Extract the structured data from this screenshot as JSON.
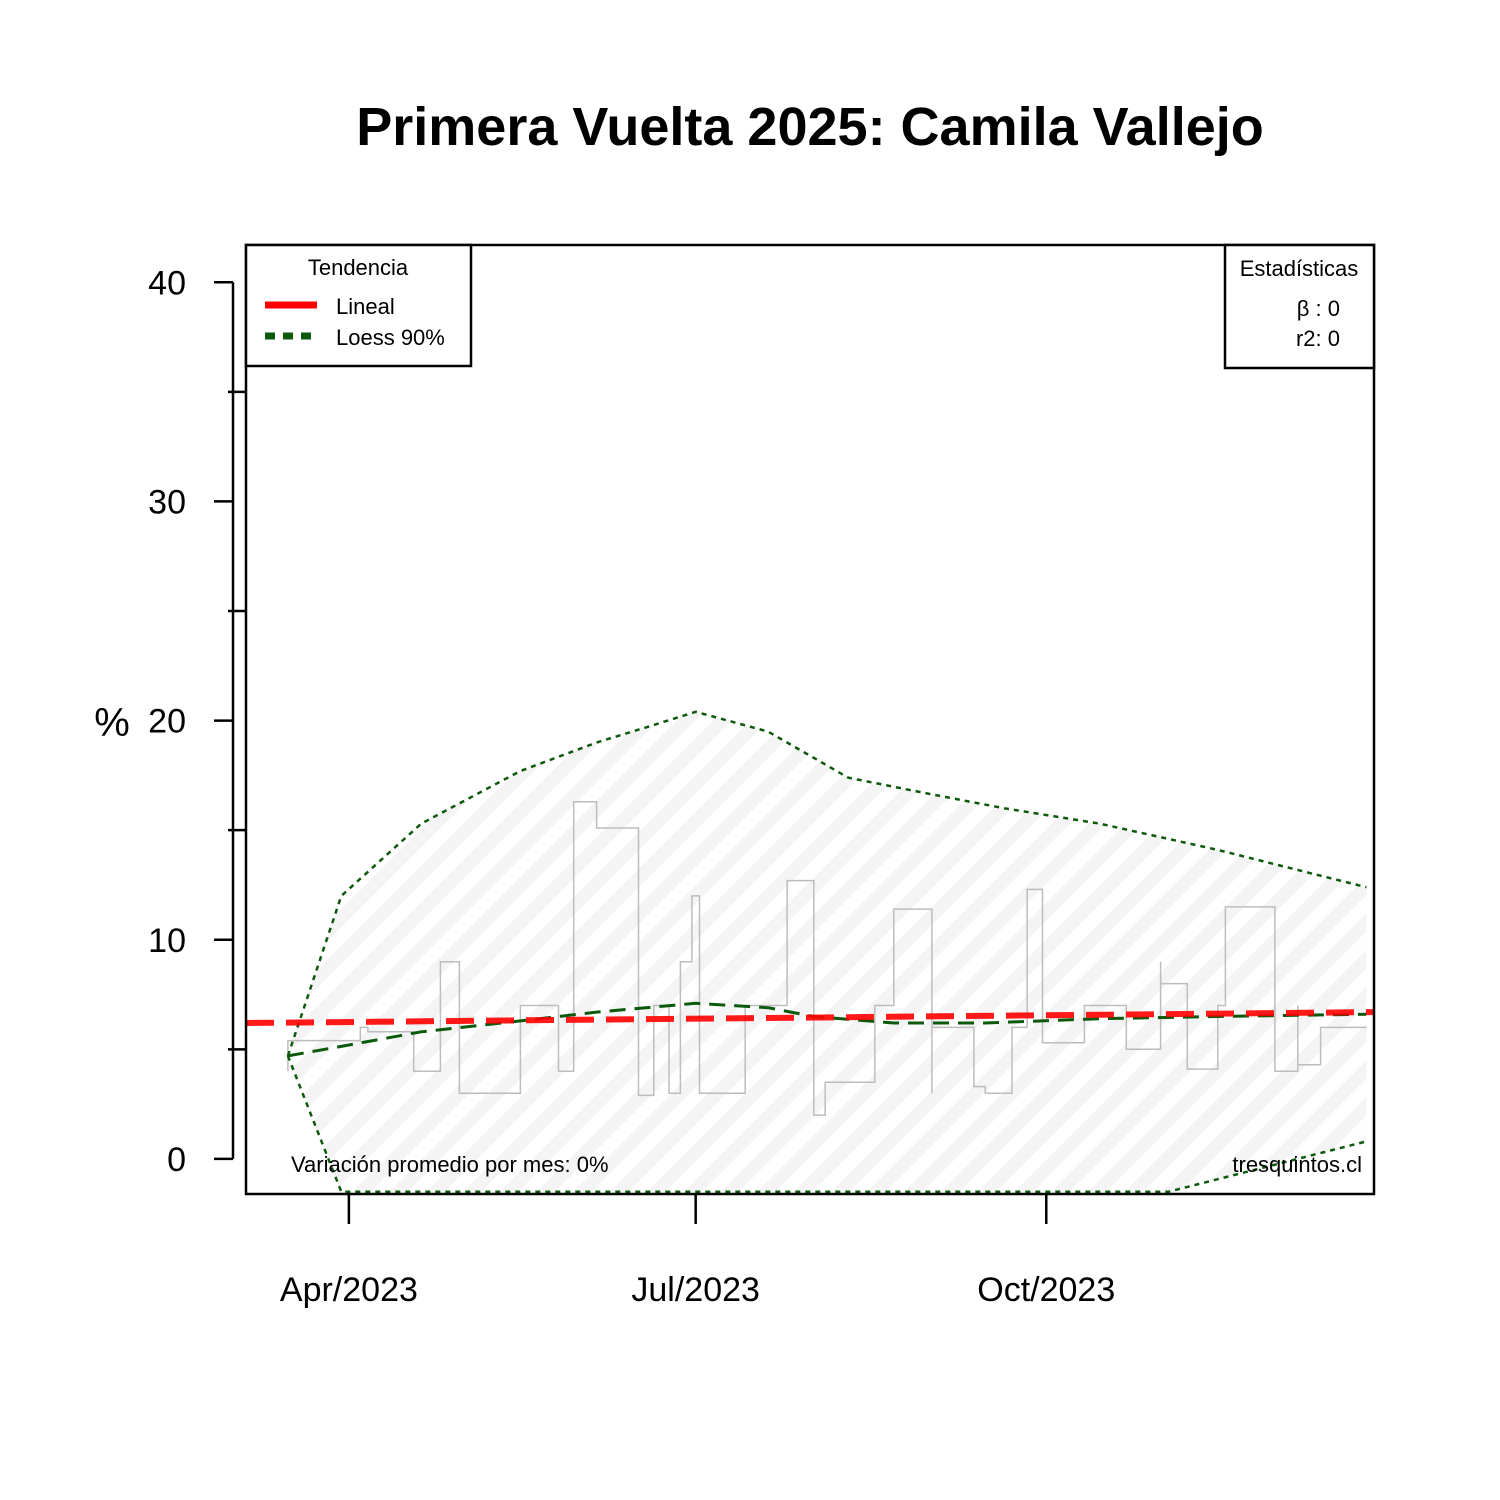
{
  "chart_data": {
    "type": "line",
    "title": "Primera Vuelta 2025: Camila Vallejo",
    "ylabel": "%",
    "xlabel": "",
    "ylim": [
      -1.6,
      41.7
    ],
    "xlim": [
      "2023-03-05",
      "2023-12-26"
    ],
    "yticks": [
      0,
      10,
      20,
      30,
      40
    ],
    "yticks_minor": [
      5,
      15,
      25,
      35
    ],
    "xticks": [
      {
        "date": "2023-04-01",
        "label": "Apr/2023"
      },
      {
        "date": "2023-07-01",
        "label": "Jul/2023"
      },
      {
        "date": "2023-10-01",
        "label": "Oct/2023"
      }
    ],
    "grid": false,
    "series": [
      {
        "name": "",
        "style": "step",
        "color": "#bdbdbd",
        "points": [
          [
            "2023-03-16",
            4.0
          ],
          [
            "2023-03-16",
            5.4
          ],
          [
            "2023-03-30",
            5.4
          ],
          [
            "2023-04-04",
            5.4
          ],
          [
            "2023-04-04",
            6.0
          ],
          [
            "2023-04-06",
            6.0
          ],
          [
            "2023-04-06",
            5.8
          ],
          [
            "2023-04-18",
            5.8
          ],
          [
            "2023-04-18",
            4.0
          ],
          [
            "2023-04-25",
            4.0
          ],
          [
            "2023-04-25",
            9.0
          ],
          [
            "2023-04-30",
            9.0
          ],
          [
            "2023-04-30",
            3.0
          ],
          [
            "2023-05-16",
            3.0
          ],
          [
            "2023-05-16",
            7.0
          ],
          [
            "2023-05-26",
            7.0
          ],
          [
            "2023-05-26",
            4.0
          ],
          [
            "2023-05-30",
            4.0
          ],
          [
            "2023-05-30",
            16.3
          ],
          [
            "2023-06-05",
            16.3
          ],
          [
            "2023-06-05",
            15.1
          ],
          [
            "2023-06-16",
            15.1
          ],
          [
            "2023-06-16",
            2.9
          ],
          [
            "2023-06-20",
            2.9
          ],
          [
            "2023-06-20",
            7.0
          ],
          [
            "2023-06-24",
            7.0
          ],
          [
            "2023-06-24",
            3.0
          ],
          [
            "2023-06-27",
            3.0
          ],
          [
            "2023-06-27",
            9.0
          ],
          [
            "2023-06-30",
            9.0
          ],
          [
            "2023-06-30",
            12.0
          ],
          [
            "2023-07-02",
            12.0
          ],
          [
            "2023-07-02",
            3.0
          ],
          [
            "2023-07-14",
            3.0
          ],
          [
            "2023-07-14",
            7.0
          ],
          [
            "2023-07-25",
            7.0
          ],
          [
            "2023-07-25",
            12.7
          ],
          [
            "2023-08-01",
            12.7
          ],
          [
            "2023-08-01",
            2.0
          ],
          [
            "2023-08-04",
            2.0
          ],
          [
            "2023-08-04",
            3.5
          ],
          [
            "2023-08-17",
            3.5
          ],
          [
            "2023-08-17",
            7.0
          ],
          [
            "2023-08-22",
            7.0
          ],
          [
            "2023-08-22",
            11.4
          ],
          [
            "2023-09-01",
            11.4
          ],
          [
            "2023-09-01",
            3.0
          ],
          [
            "2023-09-01",
            6.0
          ],
          [
            "2023-09-12",
            6.0
          ],
          [
            "2023-09-12",
            3.3
          ],
          [
            "2023-09-15",
            3.3
          ],
          [
            "2023-09-15",
            3.0
          ],
          [
            "2023-09-22",
            3.0
          ],
          [
            "2023-09-22",
            6.0
          ],
          [
            "2023-09-26",
            6.0
          ],
          [
            "2023-09-26",
            12.3
          ],
          [
            "2023-09-30",
            12.3
          ],
          [
            "2023-09-30",
            5.3
          ],
          [
            "2023-10-11",
            5.3
          ],
          [
            "2023-10-11",
            7.0
          ],
          [
            "2023-10-22",
            7.0
          ],
          [
            "2023-10-22",
            5.0
          ],
          [
            "2023-10-31",
            5.0
          ],
          [
            "2023-10-31",
            9.0
          ],
          [
            "2023-10-31",
            8.0
          ],
          [
            "2023-11-07",
            8.0
          ],
          [
            "2023-11-07",
            4.1
          ],
          [
            "2023-11-15",
            4.1
          ],
          [
            "2023-11-15",
            7.0
          ],
          [
            "2023-11-17",
            7.0
          ],
          [
            "2023-11-17",
            11.5
          ],
          [
            "2023-11-30",
            11.5
          ],
          [
            "2023-11-30",
            4.0
          ],
          [
            "2023-12-06",
            4.0
          ],
          [
            "2023-12-06",
            7.0
          ],
          [
            "2023-12-06",
            4.3
          ],
          [
            "2023-12-12",
            4.3
          ],
          [
            "2023-12-12",
            6.0
          ],
          [
            "2023-12-24",
            6.0
          ]
        ]
      },
      {
        "name": "Lineal",
        "style": "dashed",
        "color": "#ff0000",
        "points": [
          [
            "2023-03-05",
            6.2
          ],
          [
            "2023-12-26",
            6.7
          ]
        ]
      },
      {
        "name": "Loess 90%",
        "style": "dashed",
        "color": "#0b5a0b",
        "points": [
          [
            "2023-03-16",
            4.7
          ],
          [
            "2023-04-01",
            5.2
          ],
          [
            "2023-04-20",
            5.8
          ],
          [
            "2023-05-16",
            6.3
          ],
          [
            "2023-06-05",
            6.7
          ],
          [
            "2023-07-01",
            7.1
          ],
          [
            "2023-07-20",
            6.9
          ],
          [
            "2023-08-01",
            6.5
          ],
          [
            "2023-08-22",
            6.2
          ],
          [
            "2023-09-15",
            6.2
          ],
          [
            "2023-10-15",
            6.4
          ],
          [
            "2023-11-15",
            6.5
          ],
          [
            "2023-12-24",
            6.6
          ]
        ]
      }
    ],
    "band": {
      "color": "#0b5a0b",
      "upper": [
        [
          "2023-03-16",
          4.7
        ],
        [
          "2023-03-30",
          12.0
        ],
        [
          "2023-04-20",
          15.3
        ],
        [
          "2023-05-16",
          17.7
        ],
        [
          "2023-06-05",
          19.0
        ],
        [
          "2023-06-20",
          19.8
        ],
        [
          "2023-07-01",
          20.4
        ],
        [
          "2023-07-20",
          19.5
        ],
        [
          "2023-08-10",
          17.4
        ],
        [
          "2023-08-30",
          16.7
        ],
        [
          "2023-09-20",
          16.0
        ],
        [
          "2023-10-15",
          15.3
        ],
        [
          "2023-11-15",
          14.1
        ],
        [
          "2023-12-24",
          12.4
        ]
      ],
      "lower": [
        [
          "2023-03-16",
          4.7
        ],
        [
          "2023-03-30",
          -1.5
        ],
        [
          "2023-11-02",
          -1.5
        ],
        [
          "2023-12-24",
          0.8
        ]
      ]
    },
    "legend": {
      "title": "Tendencia",
      "position": "top-left",
      "entries": [
        {
          "label": "Lineal",
          "color": "#ff0000"
        },
        {
          "label": "Loess 90%",
          "color": "#0b5a0b"
        }
      ]
    },
    "stats_box": {
      "title": "Estadísticas",
      "position": "top-right",
      "lines": [
        "β : 0",
        "r2: 0"
      ]
    },
    "annotations": {
      "bottom_left": "Variación promedio por mes: 0%",
      "bottom_right": "tresquintos.cl"
    }
  }
}
